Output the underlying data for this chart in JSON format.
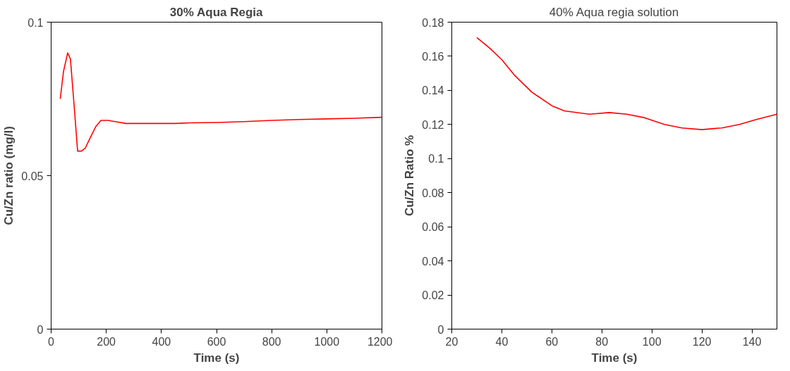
{
  "chart_data": [
    {
      "type": "line",
      "title": "30% Aqua Regia",
      "xlabel": "Time (s)",
      "ylabel": "Cu/Zn ratio (mg/l)",
      "x": [
        33,
        45,
        60,
        70,
        85,
        96,
        110,
        124,
        140,
        162,
        181,
        206,
        240,
        272,
        350,
        450,
        505,
        600,
        700,
        800,
        900,
        1000,
        1100,
        1200
      ],
      "series": [
        {
          "color": "#ff0000",
          "values": [
            0.075,
            0.084,
            0.09,
            0.088,
            0.071,
            0.058,
            0.058,
            0.059,
            0.062,
            0.066,
            0.068,
            0.068,
            0.0675,
            0.067,
            0.067,
            0.067,
            0.0672,
            0.0673,
            0.0676,
            0.068,
            0.0683,
            0.0685,
            0.0687,
            0.069
          ]
        }
      ],
      "xlim": [
        0,
        1200
      ],
      "ylim": [
        0,
        0.1
      ],
      "xticks": [
        0,
        200,
        400,
        600,
        800,
        1000,
        1200
      ],
      "yticks": [
        0,
        0.05,
        0.1
      ],
      "grid": false,
      "marker": "none",
      "line_style": "solid"
    },
    {
      "type": "line",
      "title": "40% Aqua regia solution",
      "xlabel": "Time (s)",
      "ylabel": "Cu/Zn Ratio %",
      "x": [
        30,
        35,
        40,
        45,
        52,
        60,
        65,
        75,
        83,
        90,
        97,
        105,
        112,
        120,
        128,
        135,
        142,
        150
      ],
      "series": [
        {
          "color": "#ff0000",
          "values": [
            0.171,
            0.165,
            0.158,
            0.149,
            0.139,
            0.131,
            0.128,
            0.126,
            0.127,
            0.126,
            0.124,
            0.12,
            0.118,
            0.117,
            0.118,
            0.12,
            0.123,
            0.126
          ]
        }
      ],
      "xlim": [
        20,
        150
      ],
      "ylim": [
        0,
        0.18
      ],
      "xticks": [
        20,
        40,
        60,
        80,
        100,
        120,
        140
      ],
      "yticks": [
        0,
        0.02,
        0.04,
        0.06,
        0.08,
        0.1,
        0.12,
        0.14,
        0.16,
        0.18
      ],
      "grid": false,
      "marker": "none",
      "line_style": "solid"
    }
  ]
}
